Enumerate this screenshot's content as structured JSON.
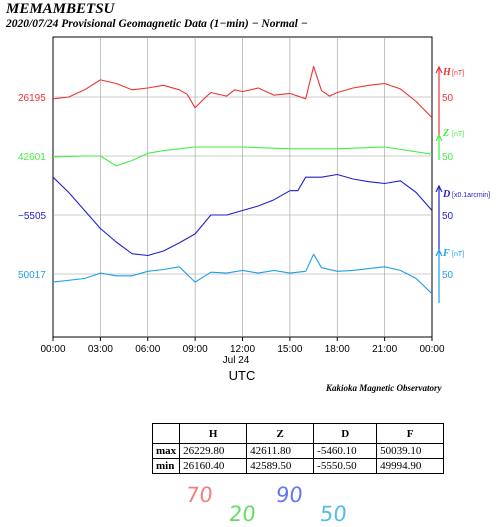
{
  "header": {
    "station": "MEMAMBETSU",
    "subtitle": "2020/07/24  Provisional Geomagnetic Data (1−min)  − Normal −"
  },
  "footer": {
    "observatory": "Kakioka Magnetic Observatory"
  },
  "chart_data": {
    "type": "line",
    "xlabel": "UTC",
    "date_label": "Jul 24",
    "x_ticks": [
      "00:00",
      "03:00",
      "06:00",
      "09:00",
      "12:00",
      "15:00",
      "18:00",
      "21:00",
      "00:00"
    ],
    "x_range_hours": [
      0,
      24
    ],
    "grid": true,
    "series": [
      {
        "name": "H",
        "unit": "[nT]",
        "color": "#ee3333",
        "baseline_label": "26195",
        "scale_label": "50",
        "points": [
          [
            0,
            26193
          ],
          [
            1,
            26195
          ],
          [
            2,
            26203
          ],
          [
            3,
            26214
          ],
          [
            4,
            26210
          ],
          [
            5,
            26203
          ],
          [
            6,
            26205
          ],
          [
            7,
            26208
          ],
          [
            8,
            26203
          ],
          [
            8.5,
            26198
          ],
          [
            9,
            26183
          ],
          [
            9.5,
            26192
          ],
          [
            10,
            26200
          ],
          [
            11,
            26196
          ],
          [
            11.5,
            26203
          ],
          [
            12,
            26201
          ],
          [
            13,
            26205
          ],
          [
            14,
            26197
          ],
          [
            15,
            26199
          ],
          [
            16,
            26193
          ],
          [
            16.5,
            26229
          ],
          [
            17,
            26202
          ],
          [
            17.5,
            26196
          ],
          [
            18,
            26200
          ],
          [
            19,
            26205
          ],
          [
            20,
            26208
          ],
          [
            21,
            26210
          ],
          [
            22,
            26204
          ],
          [
            23,
            26190
          ],
          [
            24,
            26172
          ]
        ]
      },
      {
        "name": "Z",
        "unit": "[nT]",
        "color": "#44ee44",
        "baseline_label": "42601",
        "scale_label": "50",
        "points": [
          [
            0,
            42600
          ],
          [
            2,
            42601
          ],
          [
            3,
            42601
          ],
          [
            4,
            42590
          ],
          [
            5,
            42596
          ],
          [
            6,
            42604
          ],
          [
            7,
            42607
          ],
          [
            8,
            42609
          ],
          [
            9,
            42611
          ],
          [
            12,
            42611
          ],
          [
            15,
            42609
          ],
          [
            18,
            42609
          ],
          [
            21,
            42611
          ],
          [
            24,
            42603
          ]
        ]
      },
      {
        "name": "D",
        "unit": "[x0.1arcmin]",
        "color": "#2222cc",
        "baseline_label": "−5505",
        "scale_label": "50",
        "points": [
          [
            0,
            -5463
          ],
          [
            1,
            -5480
          ],
          [
            2,
            -5500
          ],
          [
            3,
            -5520
          ],
          [
            4,
            -5535
          ],
          [
            5,
            -5548
          ],
          [
            6,
            -5550
          ],
          [
            7,
            -5545
          ],
          [
            8,
            -5536
          ],
          [
            9,
            -5526
          ],
          [
            10,
            -5505
          ],
          [
            11,
            -5505
          ],
          [
            12,
            -5500
          ],
          [
            13,
            -5495
          ],
          [
            14,
            -5488
          ],
          [
            15,
            -5478
          ],
          [
            15.5,
            -5478
          ],
          [
            16,
            -5463
          ],
          [
            17,
            -5463
          ],
          [
            18,
            -5460
          ],
          [
            19,
            -5465
          ],
          [
            20,
            -5468
          ],
          [
            21,
            -5470
          ],
          [
            22,
            -5467
          ],
          [
            23,
            -5480
          ],
          [
            24,
            -5500
          ]
        ]
      },
      {
        "name": "F",
        "unit": "[nT]",
        "color": "#1f9fe8",
        "baseline_label": "50017",
        "scale_label": "50",
        "points": [
          [
            0,
            50008
          ],
          [
            2,
            50012
          ],
          [
            3,
            50018
          ],
          [
            4,
            50015
          ],
          [
            5,
            50015
          ],
          [
            6,
            50020
          ],
          [
            7,
            50022
          ],
          [
            8,
            50025
          ],
          [
            9,
            50008
          ],
          [
            10,
            50019
          ],
          [
            11,
            50018
          ],
          [
            12,
            50021
          ],
          [
            13,
            50018
          ],
          [
            14,
            50021
          ],
          [
            15,
            50018
          ],
          [
            16,
            50020
          ],
          [
            16.5,
            50039
          ],
          [
            17,
            50024
          ],
          [
            18,
            50020
          ],
          [
            19,
            50021
          ],
          [
            20,
            50023
          ],
          [
            21,
            50025
          ],
          [
            22,
            50021
          ],
          [
            23,
            50012
          ],
          [
            24,
            49995
          ]
        ]
      }
    ]
  },
  "stats_table": {
    "headers": [
      "",
      "H",
      "Z",
      "D",
      "F"
    ],
    "rows": [
      {
        "label": "max",
        "H": "26229.80",
        "Z": "42611.80",
        "D": "-5460.10",
        "F": "50039.10"
      },
      {
        "label": "min",
        "H": "26160.40",
        "Z": "42589.50",
        "D": "-5550.50",
        "F": "49994.90"
      }
    ]
  },
  "handwritten": {
    "n70": "70",
    "n20": "20",
    "n90": "90",
    "n50": "50",
    "c70": "#f08080",
    "c20": "#66dd66",
    "c90": "#6677ee",
    "c50": "#55bbee"
  }
}
